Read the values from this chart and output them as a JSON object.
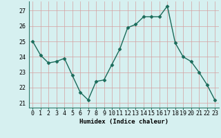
{
  "x": [
    0,
    1,
    2,
    3,
    4,
    5,
    6,
    7,
    8,
    9,
    10,
    11,
    12,
    13,
    14,
    15,
    16,
    17,
    18,
    19,
    20,
    21,
    22,
    23
  ],
  "y": [
    25.0,
    24.1,
    23.6,
    23.7,
    23.9,
    22.8,
    21.7,
    21.2,
    22.4,
    22.5,
    23.5,
    24.5,
    25.9,
    26.1,
    26.6,
    26.6,
    26.6,
    27.3,
    24.9,
    24.0,
    23.7,
    23.0,
    22.2,
    21.2
  ],
  "line_color": "#1a6b5a",
  "marker": "D",
  "marker_size": 2.5,
  "bg_color": "#d6f0f0",
  "grid_color": "#b8d8d8",
  "xlabel": "Humidex (Indice chaleur)",
  "ylim": [
    20.7,
    27.6
  ],
  "xlim": [
    -0.5,
    23.5
  ],
  "yticks": [
    21,
    22,
    23,
    24,
    25,
    26,
    27
  ],
  "xticks": [
    0,
    1,
    2,
    3,
    4,
    5,
    6,
    7,
    8,
    9,
    10,
    11,
    12,
    13,
    14,
    15,
    16,
    17,
    18,
    19,
    20,
    21,
    22,
    23
  ],
  "xlabel_fontsize": 6.5,
  "tick_fontsize": 6.0,
  "line_width": 1.0,
  "spine_color": "#2d7a6a"
}
